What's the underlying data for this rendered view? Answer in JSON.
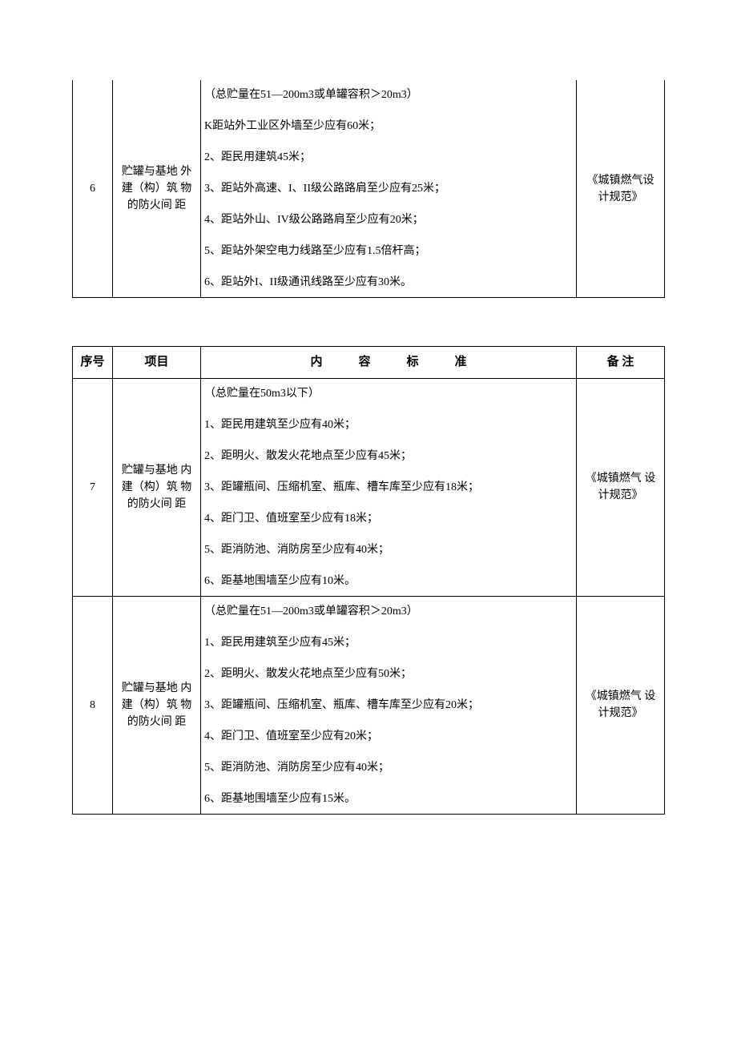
{
  "table1": {
    "rows": [
      {
        "seq": "6",
        "item": "贮罐与基地 外建（构）筑 物的防火间 距",
        "content_lines": [
          "（总贮量在51—200m3或单罐容积＞20m3）",
          "K距站外工业区外墙至少应有60米；",
          "2、距民用建筑45米；",
          "3、距站外高速、I、II级公路路肩至少应有25米；",
          "4、距站外山、IV级公路路肩至少应有20米；",
          "5、距站外架空电力线路至少应有1.5倍杆高；",
          "6、距站外I、II级通讯线路至少应有30米。"
        ],
        "note": "《城镇燃气设 计规范》"
      }
    ]
  },
  "table2": {
    "header": {
      "seq": "序号",
      "item": "项目",
      "content": "内　　　容　　　标　　　准",
      "note": "备 注"
    },
    "rows": [
      {
        "seq": "7",
        "item": "贮罐与基地 内建（构）筑 物的防火间 距",
        "content_lines": [
          "（总贮量在50m3以下）",
          "1、距民用建筑至少应有40米；",
          "2、距明火、散发火花地点至少应有45米；",
          "3、距罐瓶间、压缩机室、瓶库、槽车库至少应有18米；",
          "4、距门卫、值班室至少应有18米；",
          "5、距消防池、消防房至少应有40米；",
          "6、距基地围墙至少应有10米。"
        ],
        "note": "《城镇燃气 设计规范》"
      },
      {
        "seq": "8",
        "item": "贮罐与基地 内建（构）筑 物的防火间 距",
        "content_lines": [
          "（总贮量在51—200m3或单罐容积＞20m3）",
          "1、距民用建筑至少应有45米；",
          "2、距明火、散发火花地点至少应有50米；",
          "3、距罐瓶间、压缩机室、瓶库、槽车库至少应有20米；",
          "4、距门卫、值班室至少应有20米；",
          "5、距消防池、消防房至少应有40米；",
          "6、距基地围墙至少应有15米。"
        ],
        "note": "《城镇燃气 设计规范》"
      }
    ]
  }
}
